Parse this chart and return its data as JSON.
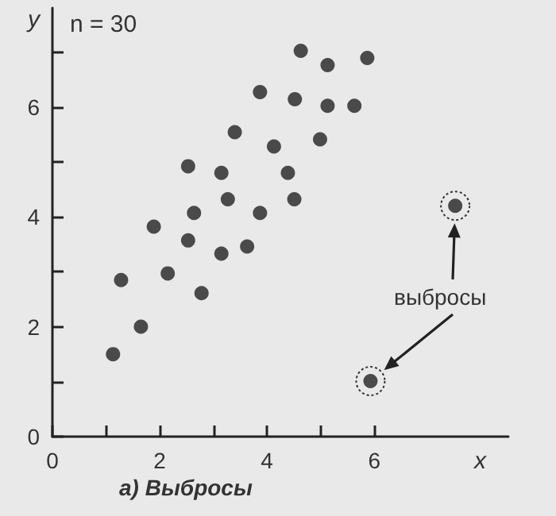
{
  "chart_data": {
    "type": "scatter",
    "title": "а) Выбросы",
    "xlabel": "x",
    "ylabel": "y",
    "annotations": [
      "n = 30",
      "выбросы"
    ],
    "series": [
      {
        "color": "#222222",
        "x": [
          4.63,
          5.13,
          5.87,
          3.87,
          4.52,
          5.13,
          5.63,
          3.4,
          4.13,
          4.99,
          2.53,
          3.15,
          4.39,
          3.27,
          4.51,
          2.64,
          3.87,
          1.89,
          2.53,
          3.15,
          3.63,
          1.28,
          2.15,
          2.78,
          1.65,
          1.13
        ],
        "values": [
          7.02,
          6.76,
          6.89,
          6.27,
          6.14,
          6.02,
          6.02,
          5.54,
          5.28,
          5.41,
          4.92,
          4.8,
          4.8,
          4.32,
          4.32,
          4.07,
          4.07,
          3.82,
          3.57,
          3.33,
          3.46,
          2.85,
          2.97,
          2.61,
          2.0,
          1.5
        ]
      },
      {
        "color": "#222222",
        "x": [
          7.51,
          5.93
        ],
        "values": [
          4.2,
          1.01
        ]
      }
    ],
    "xlim": [
      0,
      8.5
    ],
    "ylim": [
      0,
      7.8
    ],
    "xticks": [
      0,
      {
        "value": 1,
        "label": null
      },
      2,
      {
        "value": 3,
        "label": null
      },
      4,
      {
        "value": 5,
        "label": null
      },
      6
    ],
    "yticks": [
      0,
      {
        "value": 1,
        "label": null
      },
      2,
      {
        "value": 3,
        "label": null
      },
      4,
      {
        "value": 5,
        "label": null
      },
      6,
      {
        "value": 7,
        "label": null
      }
    ],
    "grid": false,
    "marker": "circle"
  }
}
